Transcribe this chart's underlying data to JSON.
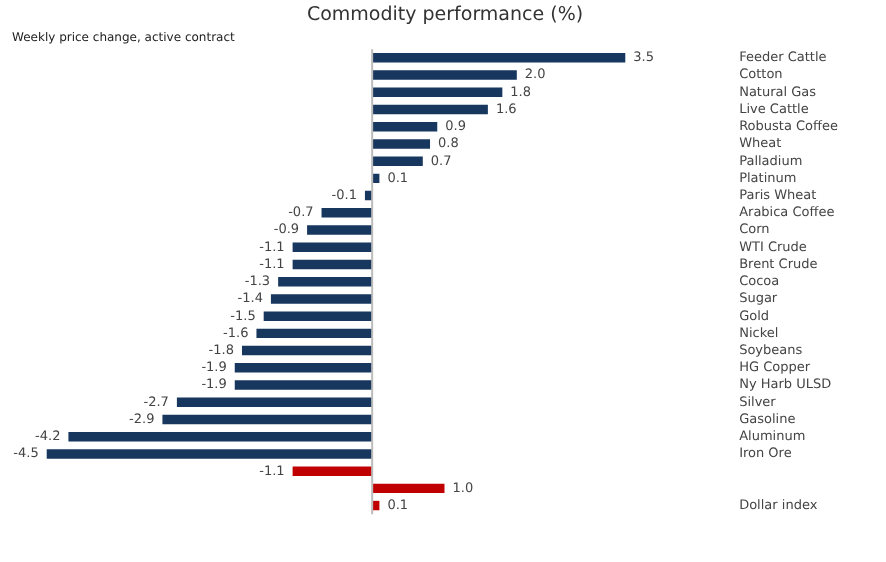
{
  "chart_data": {
    "type": "bar",
    "orientation": "horizontal",
    "title": "Commodity performance (%)",
    "subtitle": "Weekly price change, active contract",
    "categories": [
      "Feeder Cattle",
      "Cotton",
      "Natural Gas",
      "Live Cattle",
      "Robusta Coffee",
      "Wheat",
      "Palladium",
      "Platinum",
      "Paris Wheat",
      "Arabica Coffee",
      "Corn",
      "WTI Crude",
      "Brent Crude",
      "Cocoa",
      "Sugar",
      "Gold",
      "Nickel",
      "Soybeans",
      "HG Copper",
      "Ny Harb ULSD",
      "Silver",
      "Gasoline",
      "Aluminum",
      "Iron Ore",
      null,
      null,
      "Dollar index"
    ],
    "values": [
      3.5,
      2.0,
      1.8,
      1.6,
      0.9,
      0.8,
      0.7,
      0.1,
      -0.1,
      -0.7,
      -0.9,
      -1.1,
      -1.1,
      -1.3,
      -1.4,
      -1.5,
      -1.6,
      -1.8,
      -1.9,
      -1.9,
      -2.7,
      -2.9,
      -4.2,
      -4.5,
      -1.1,
      1.0,
      0.1
    ],
    "value_labels": [
      "3.5",
      "2.0",
      "1.8",
      "1.6",
      "0.9",
      "0.8",
      "0.7",
      "0.1",
      "-0.1",
      "-0.7",
      "-0.9",
      "-1.1",
      "-1.1",
      "-1.3",
      "-1.4",
      "-1.5",
      "-1.6",
      "-1.8",
      "-1.9",
      "-1.9",
      "-2.7",
      "-2.9",
      "-4.2",
      "-4.5",
      "-1.1",
      "1.0",
      "0.1"
    ],
    "colors": [
      "#17375e",
      "#17375e",
      "#17375e",
      "#17375e",
      "#17375e",
      "#17375e",
      "#17375e",
      "#17375e",
      "#17375e",
      "#17375e",
      "#17375e",
      "#17375e",
      "#17375e",
      "#17375e",
      "#17375e",
      "#17375e",
      "#17375e",
      "#17375e",
      "#17375e",
      "#17375e",
      "#17375e",
      "#17375e",
      "#17375e",
      "#17375e",
      "#c00000",
      "#c00000",
      "#c00000"
    ],
    "legend": false
  }
}
